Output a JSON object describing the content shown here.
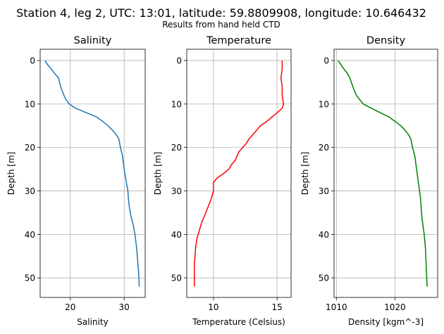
{
  "suptitle": "Station 4, leg 2, UTC: 13:01, latitude: 59.8809908, longitude: 10.646432",
  "subtitle": "Results from hand held CTD",
  "chart_data": [
    {
      "type": "line",
      "title": "Salinity",
      "xlabel": "Salinity",
      "ylabel": "Depth [m]",
      "xlim": [
        14.4,
        33.9
      ],
      "ylim": [
        54.5,
        -2.6
      ],
      "y_inverted": true,
      "grid": true,
      "xticks": [
        20,
        30
      ],
      "yticks": [
        0,
        10,
        20,
        30,
        40,
        50
      ],
      "color": "#1f77b4",
      "x": [
        15.3,
        15.8,
        16.5,
        17.1,
        17.8,
        18.2,
        18.8,
        19.2,
        19.8,
        21.0,
        23.0,
        24.9,
        26.0,
        27.0,
        27.8,
        28.5,
        29.0,
        29.3,
        29.7,
        30.0,
        30.4,
        30.7,
        30.8,
        31.0,
        31.3,
        31.7,
        32.0,
        32.3,
        32.5,
        32.7,
        32.8
      ],
      "y": [
        0,
        1,
        2,
        3,
        4,
        6,
        8,
        9,
        10,
        11,
        12,
        13,
        14,
        15,
        16,
        17,
        18,
        20,
        22,
        25,
        28,
        30,
        32,
        34,
        36,
        38,
        40,
        43,
        46,
        49,
        52
      ]
    },
    {
      "type": "line",
      "title": "Temperature",
      "xlabel": "Temperature (Celsius)",
      "ylabel": "Depth [m]",
      "xlim": [
        7.9,
        16.1
      ],
      "ylim": [
        54.5,
        -2.6
      ],
      "y_inverted": true,
      "grid": true,
      "xticks": [
        10,
        15
      ],
      "yticks": [
        0,
        10,
        20,
        30,
        40,
        50
      ],
      "color": "#ff0000",
      "x": [
        15.4,
        15.4,
        15.3,
        15.4,
        15.4,
        15.5,
        15.4,
        15.0,
        14.2,
        13.7,
        13.1,
        12.8,
        12.6,
        12.3,
        12.0,
        11.7,
        11.4,
        11.2,
        10.8,
        10.3,
        10.0,
        10.0,
        9.8,
        9.4,
        9.1,
        8.9,
        8.7,
        8.6,
        8.5,
        8.5
      ],
      "y": [
        0,
        2,
        4,
        6,
        8,
        10,
        11,
        12,
        14,
        15,
        17,
        18,
        19,
        20,
        21,
        23,
        24,
        25,
        26,
        27,
        28,
        30,
        32,
        35,
        37,
        39,
        41,
        43,
        47,
        52
      ]
    },
    {
      "type": "line",
      "title": "Density",
      "xlabel": "Density [kgm^-3]",
      "ylabel": "Depth [m]",
      "xlim": [
        1009.6,
        1027.3
      ],
      "ylim": [
        54.5,
        -2.6
      ],
      "y_inverted": true,
      "grid": true,
      "xticks": [
        1010,
        1020
      ],
      "yticks": [
        0,
        10,
        20,
        30,
        40,
        50
      ],
      "color": "#008000",
      "x": [
        1010.3,
        1010.8,
        1011.3,
        1011.9,
        1012.3,
        1012.8,
        1013.4,
        1014.0,
        1014.6,
        1016.0,
        1017.5,
        1019.0,
        1020.0,
        1021.0,
        1021.7,
        1022.3,
        1022.7,
        1023.0,
        1023.4,
        1023.7,
        1024.0,
        1024.2,
        1024.4,
        1024.5,
        1024.6,
        1024.8,
        1025.0,
        1025.2,
        1025.3,
        1025.4,
        1025.5
      ],
      "y": [
        0,
        1,
        2,
        3,
        4,
        6,
        8,
        9,
        10,
        11,
        12,
        13,
        14,
        15,
        16,
        17,
        18,
        20,
        22,
        25,
        28,
        30,
        32,
        34,
        36,
        38,
        40,
        43,
        46,
        49,
        52
      ]
    }
  ]
}
